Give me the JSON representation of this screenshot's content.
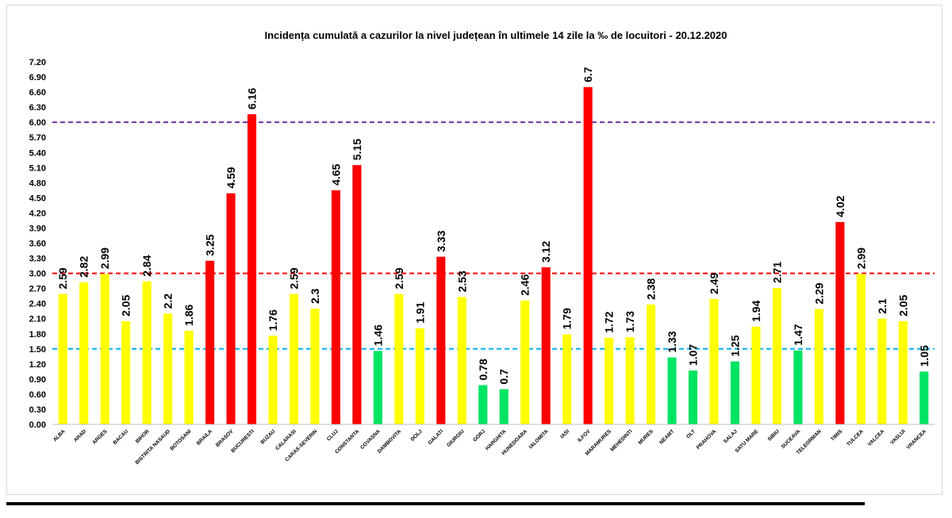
{
  "chart_data": {
    "type": "bar",
    "title": "Incidența cumulată a cazurilor la nivel județean în ultimele 14 zile la ‰ de locuitori - 20.12.2020",
    "xlabel": "",
    "ylabel": "",
    "ylim": [
      0,
      7.2
    ],
    "ytick_step": 0.3,
    "ytick_labels": [
      "0.00",
      "0.30",
      "0.60",
      "0.90",
      "1.20",
      "1.50",
      "1.80",
      "2.10",
      "2.40",
      "2.70",
      "3.00",
      "3.30",
      "3.60",
      "3.90",
      "4.20",
      "4.50",
      "4.80",
      "5.10",
      "5.40",
      "5.70",
      "6.00",
      "6.30",
      "6.60",
      "6.90",
      "7.20"
    ],
    "categories": [
      "ALBA",
      "ARAD",
      "ARGES",
      "BACAU",
      "BIHOR",
      "BISTRITA NASAUD",
      "BOTOSANI",
      "BRAILA",
      "BRASOV",
      "BUCURESTI",
      "BUZAU",
      "CALARASI",
      "CARAS-SEVERIN",
      "CLUJ",
      "CONSTANTA",
      "COVASNA",
      "DAMBOVITA",
      "DOLJ",
      "GALATI",
      "GIURGIU",
      "GORJ",
      "HARGHITA",
      "HUNEDOARA",
      "IALOMITA",
      "IASI",
      "ILFOV",
      "MARAMURES",
      "MEHEDINTI",
      "MURES",
      "NEAMT",
      "OLT",
      "PRAHOVA",
      "SALAJ",
      "SATU MARE",
      "SIBIU",
      "SUCEAVA",
      "TELEORMAN",
      "TIMIS",
      "TULCEA",
      "VALCEA",
      "VASLUI",
      "VRANCEA"
    ],
    "values": [
      2.59,
      2.82,
      2.99,
      2.05,
      2.84,
      2.2,
      1.86,
      3.25,
      4.59,
      6.16,
      1.76,
      2.59,
      2.3,
      4.65,
      5.15,
      1.46,
      2.59,
      1.91,
      3.33,
      2.53,
      0.78,
      0.7,
      2.46,
      3.12,
      1.79,
      6.7,
      1.72,
      1.73,
      2.38,
      1.33,
      1.07,
      2.49,
      1.25,
      1.94,
      2.71,
      1.47,
      2.29,
      4.02,
      2.99,
      2.1,
      2.05,
      1.05
    ],
    "value_labels": [
      "2.59",
      "2.82",
      "2.99",
      "2.05",
      "2.84",
      "2.2",
      "1.86",
      "3.25",
      "4.59",
      "6.16",
      "1.76",
      "2.59",
      "2.3",
      "4.65",
      "5.15",
      "1.46",
      "2.59",
      "1.91",
      "3.33",
      "2.53",
      "0.78",
      "0.7",
      "2.46",
      "3.12",
      "1.79",
      "6.7",
      "1.72",
      "1.73",
      "2.38",
      "1.33",
      "1.07",
      "2.49",
      "1.25",
      "1.94",
      "2.71",
      "1.47",
      "2.29",
      "4.02",
      "2.99",
      "2.1",
      "2.05",
      "1.05"
    ],
    "color_thresholds": {
      "low": 1.5,
      "high": 3.0
    },
    "colors": {
      "green": "#00e463",
      "yellow": "#ffff00",
      "red": "#ff0000"
    },
    "reference_lines": [
      {
        "value": 6.0,
        "color": "#7030a0"
      },
      {
        "value": 3.0,
        "color": "#ff0000"
      },
      {
        "value": 1.5,
        "color": "#00b0f0"
      }
    ],
    "grid": false
  }
}
